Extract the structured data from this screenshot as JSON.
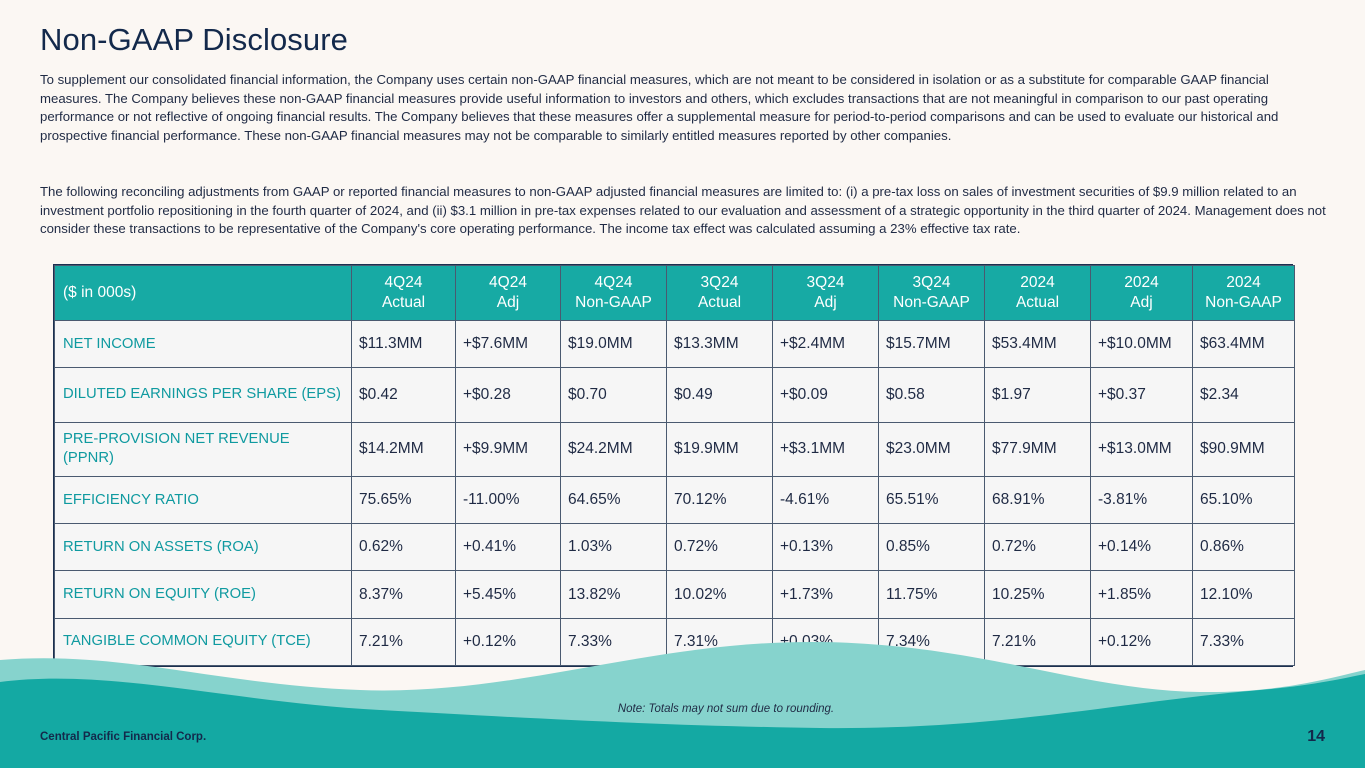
{
  "title": "Non-GAAP Disclosure",
  "intro": "To supplement our consolidated financial information, the Company uses certain non-GAAP financial measures, which are not meant to be considered in isolation or as a substitute for comparable GAAP financial measures. The Company believes these non-GAAP financial measures provide useful information to investors and others, which excludes transactions that are not meaningful in comparison to our past operating performance or not reflective of ongoing financial results. The Company believes that these measures offer a supplemental measure for period-to-period comparisons and can be used to evaluate our historical and prospective financial performance. These non-GAAP financial measures may not be comparable to similarly entitled measures reported by other companies.",
  "reconciliation": "The following reconciling adjustments from GAAP or reported financial measures to non-GAAP adjusted financial measures are limited to: (i) a pre-tax loss on sales of investment securities of $9.9 million related to an investment portfolio repositioning in the fourth quarter of 2024, and (ii) $3.1 million in pre-tax expenses related to our evaluation and assessment of a strategic opportunity in the third quarter of 2024. Management does not consider these transactions to be representative of the Company's core operating performance. The income tax effect was calculated assuming a 23% effective tax rate.",
  "table": {
    "header": {
      "label": "($ in 000s)",
      "columns": [
        "4Q24\nActual",
        "4Q24\nAdj",
        "4Q24\nNon-GAAP",
        "3Q24\nActual",
        "3Q24\nAdj",
        "3Q24\nNon-GAAP",
        "2024\nActual",
        "2024\nAdj",
        "2024\nNon-GAAP"
      ]
    },
    "rows": [
      {
        "metric": "NET INCOME",
        "values": [
          "$11.3MM",
          "+$7.6MM",
          "$19.0MM",
          "$13.3MM",
          "+$2.4MM",
          "$15.7MM",
          "$53.4MM",
          "+$10.0MM",
          "$63.4MM"
        ]
      },
      {
        "metric": "DILUTED EARNINGS PER SHARE (EPS)",
        "values": [
          "$0.42",
          "+$0.28",
          "$0.70",
          "$0.49",
          "+$0.09",
          "$0.58",
          "$1.97",
          "+$0.37",
          "$2.34"
        ]
      },
      {
        "metric": "PRE-PROVISION NET REVENUE (PPNR)",
        "values": [
          "$14.2MM",
          "+$9.9MM",
          "$24.2MM",
          "$19.9MM",
          "+$3.1MM",
          "$23.0MM",
          "$77.9MM",
          "+$13.0MM",
          "$90.9MM"
        ]
      },
      {
        "metric": "EFFICIENCY RATIO",
        "values": [
          "75.65%",
          "-11.00%",
          "64.65%",
          "70.12%",
          "-4.61%",
          "65.51%",
          "68.91%",
          "-3.81%",
          "65.10%"
        ]
      },
      {
        "metric": "RETURN ON ASSETS (ROA)",
        "values": [
          "0.62%",
          "+0.41%",
          "1.03%",
          "0.72%",
          "+0.13%",
          "0.85%",
          "0.72%",
          "+0.14%",
          "0.86%"
        ]
      },
      {
        "metric": "RETURN ON EQUITY (ROE)",
        "values": [
          "8.37%",
          "+5.45%",
          "13.82%",
          "10.02%",
          "+1.73%",
          "11.75%",
          "10.25%",
          "+1.85%",
          "12.10%"
        ]
      },
      {
        "metric": "TANGIBLE COMMON EQUITY (TCE)",
        "values": [
          "7.21%",
          "+0.12%",
          "7.33%",
          "7.31%",
          "+0.03%",
          "7.34%",
          "7.21%",
          "+0.12%",
          "7.33%"
        ]
      }
    ]
  },
  "note": "Note: Totals may not sum due to rounding.",
  "footer": {
    "company": "Central Pacific Financial Corp.",
    "page": "14"
  },
  "colors": {
    "header_teal": "#17aaa4",
    "metric_teal": "#0f9aa0",
    "navy": "#13294b",
    "wave_light": "#86d3cd",
    "wave_dark": "#14a9a3"
  }
}
